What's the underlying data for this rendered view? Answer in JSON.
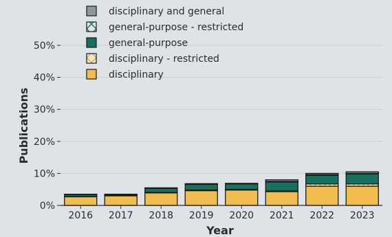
{
  "chart_data": {
    "type": "bar",
    "stacked": true,
    "title": "",
    "xlabel": "Year",
    "ylabel": "Publications",
    "categories": [
      "2016",
      "2017",
      "2018",
      "2019",
      "2020",
      "2021",
      "2022",
      "2023"
    ],
    "ylim": [
      0,
      50
    ],
    "yticks": [
      0,
      10,
      20,
      30,
      40,
      50
    ],
    "ytick_labels": [
      "0%",
      "10%",
      "20%",
      "30%",
      "40%",
      "50%"
    ],
    "grid": true,
    "legend_position": "top-left",
    "series": [
      {
        "name": "disciplinary",
        "color": "#f2bd4f",
        "pattern": "none",
        "values": [
          2.7,
          3.0,
          3.9,
          4.6,
          4.8,
          4.3,
          6.0,
          6.0
        ]
      },
      {
        "name": "disciplinary - restricted",
        "color": "#f7e6c4",
        "pattern": "cross",
        "values": [
          0.1,
          0.1,
          0.2,
          0.2,
          0.2,
          0.2,
          0.7,
          0.7
        ]
      },
      {
        "name": "general-purpose",
        "color": "#17705f",
        "pattern": "none",
        "values": [
          0.6,
          0.3,
          1.2,
          1.8,
          1.7,
          2.8,
          2.7,
          3.1
        ]
      },
      {
        "name": "general-purpose - restricted",
        "color": "#dfe6e8",
        "pattern": "x",
        "values": [
          0.0,
          0.0,
          0.0,
          0.0,
          0.0,
          0.2,
          0.2,
          0.2
        ]
      },
      {
        "name": "disciplinary and general",
        "color": "#8e9a99",
        "pattern": "none",
        "values": [
          0.1,
          0.1,
          0.2,
          0.2,
          0.2,
          0.5,
          0.4,
          0.5
        ]
      }
    ]
  }
}
